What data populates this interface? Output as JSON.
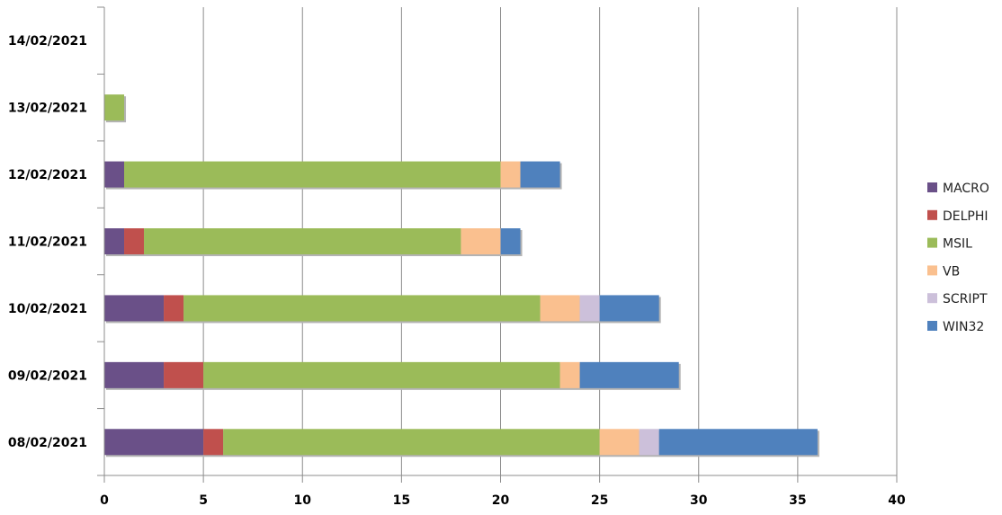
{
  "chart_data": {
    "type": "bar",
    "orientation": "horizontal",
    "stacked": true,
    "categories": [
      "08/02/2021",
      "09/02/2021",
      "10/02/2021",
      "11/02/2021",
      "12/02/2021",
      "13/02/2021",
      "14/02/2021"
    ],
    "series": [
      {
        "name": "MACRO",
        "color": "#6a5088",
        "values": [
          5,
          3,
          3,
          1,
          1,
          0,
          0
        ]
      },
      {
        "name": "DELPHI",
        "color": "#c0504d",
        "values": [
          1,
          2,
          1,
          1,
          0,
          0,
          0
        ]
      },
      {
        "name": "MSIL",
        "color": "#9bbb59",
        "values": [
          19,
          18,
          18,
          16,
          19,
          1,
          0
        ]
      },
      {
        "name": "VB",
        "color": "#fac08f",
        "values": [
          2,
          1,
          2,
          2,
          1,
          0,
          0
        ]
      },
      {
        "name": "SCRIPT",
        "color": "#ccc0da",
        "values": [
          1,
          0,
          1,
          0,
          0,
          0,
          0
        ]
      },
      {
        "name": "WIN32",
        "color": "#4f81bd",
        "values": [
          8,
          5,
          3,
          1,
          2,
          0,
          0
        ]
      }
    ],
    "xlim": [
      0,
      40
    ],
    "xticks": [
      0,
      5,
      10,
      15,
      20,
      25,
      30,
      35,
      40
    ],
    "grid": "vertical",
    "legend_position": "right",
    "title": "",
    "xlabel": "",
    "ylabel": ""
  }
}
